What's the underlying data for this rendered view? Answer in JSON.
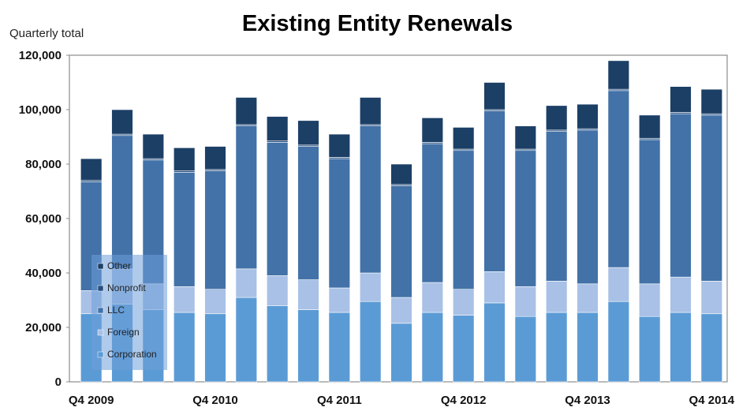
{
  "chart_data": {
    "type": "bar",
    "stacked": true,
    "title": "Existing Entity Renewals",
    "ylabel": "Quarterly total",
    "xlabel": "",
    "ylim": [
      0,
      120000
    ],
    "yticks": [
      "0",
      "20,000",
      "40,000",
      "60,000",
      "80,000",
      "100,000",
      "120,000"
    ],
    "ytick_values": [
      0,
      20000,
      40000,
      60000,
      80000,
      100000,
      120000
    ],
    "categories": [
      "Q4 2009",
      "Q1 2010",
      "Q2 2010",
      "Q3 2010",
      "Q4 2010",
      "Q1 2011",
      "Q2 2011",
      "Q3 2011",
      "Q4 2011",
      "Q1 2012",
      "Q2 2012",
      "Q3 2012",
      "Q4 2012",
      "Q1 2013",
      "Q2 2013",
      "Q3 2013",
      "Q4 2013",
      "Q1 2014",
      "Q2 2014",
      "Q3 2014",
      "Q4 2014"
    ],
    "xtick_labels": [
      "Q4 2009",
      "",
      "",
      "",
      "Q4 2010",
      "",
      "",
      "",
      "Q4 2011",
      "",
      "",
      "",
      "Q4 2012",
      "",
      "",
      "",
      "Q4 2013",
      "",
      "",
      "",
      "Q4 2014"
    ],
    "series": [
      {
        "name": "Corporation",
        "color": "#5b9bd5",
        "values": [
          25000,
          28500,
          26500,
          25500,
          25000,
          31000,
          28000,
          26500,
          25500,
          29500,
          21500,
          25500,
          24500,
          29000,
          24000,
          25500,
          25500,
          29500,
          24000,
          25500,
          25000
        ]
      },
      {
        "name": "Foreign",
        "color": "#a9c1e6",
        "values": [
          8500,
          13000,
          9500,
          9500,
          9000,
          10500,
          11000,
          11000,
          9000,
          10500,
          9500,
          11000,
          9500,
          11500,
          11000,
          11500,
          10500,
          12500,
          12000,
          13000,
          12000
        ]
      },
      {
        "name": "LLC",
        "color": "#4272a8",
        "values": [
          40000,
          49000,
          45500,
          42000,
          43500,
          52500,
          49000,
          49000,
          47500,
          54000,
          41000,
          51000,
          51000,
          59000,
          50000,
          55000,
          56500,
          65000,
          53000,
          60000,
          61000
        ]
      },
      {
        "name": "Nonprofit",
        "color": "#264f80",
        "values": [
          500,
          500,
          500,
          500,
          500,
          500,
          500,
          500,
          500,
          500,
          500,
          500,
          500,
          500,
          500,
          500,
          500,
          500,
          500,
          500,
          500
        ]
      },
      {
        "name": "Other",
        "color": "#1c3f66",
        "values": [
          8000,
          9000,
          9000,
          8500,
          8500,
          10000,
          9000,
          9000,
          8500,
          10000,
          7500,
          9000,
          8000,
          10000,
          8500,
          9000,
          9000,
          10500,
          8500,
          9500,
          9000
        ]
      }
    ],
    "legend_position": "bottom-left inside",
    "legend_order": [
      "Other",
      "Nonprofit",
      "LLC",
      "Foreign",
      "Corporation"
    ],
    "grid": false
  }
}
